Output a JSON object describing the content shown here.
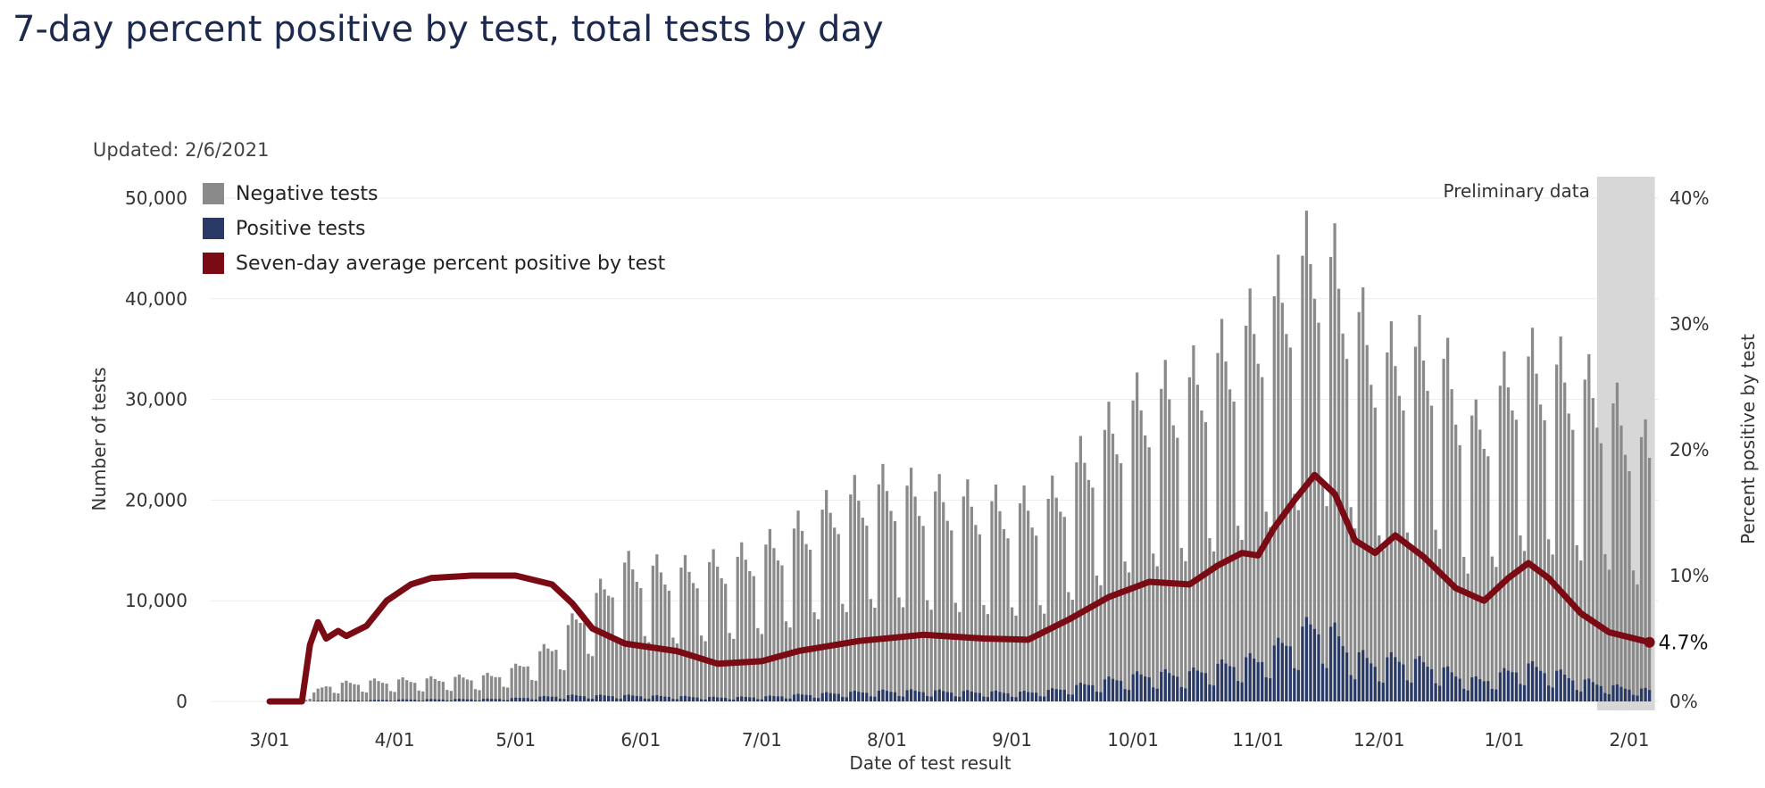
{
  "title": "7-day percent positive by test, total tests by day",
  "updated": "Updated: 2/6/2021",
  "colors": {
    "negative": "#8a8a8a",
    "positive": "#2a3a66",
    "line": "#7a0a14",
    "prelim_band": "#d7d7d7",
    "title": "#1d2a4d"
  },
  "chart_data": {
    "type": "bar",
    "xlabel": "Date of test result",
    "ylabel_left": "Number of tests",
    "ylabel_right": "Percent positive by test",
    "y_left_ticks": [
      "0",
      "10,000",
      "20,000",
      "30,000",
      "40,000",
      "50,000"
    ],
    "y_right_ticks": [
      "0%",
      "10%",
      "20%",
      "30%",
      "40%"
    ],
    "x_ticks": [
      "3/01",
      "4/01",
      "5/01",
      "6/01",
      "7/01",
      "8/01",
      "9/01",
      "10/01",
      "11/01",
      "12/01",
      "1/01",
      "2/01"
    ],
    "ylim_left": [
      0,
      50000
    ],
    "ylim_right": [
      0,
      40
    ],
    "legend": [
      "Negative tests",
      "Positive tests",
      "Seven-day average percent positive by test"
    ],
    "legend_position": "top-left",
    "preliminary_label": "Preliminary data",
    "preliminary_range": [
      "2021-01-24",
      "2021-02-06"
    ],
    "end_label": "4.7%",
    "series_total_tests_anchors": [
      [
        "2020-03-01",
        0
      ],
      [
        "2020-03-10",
        300
      ],
      [
        "2020-03-15",
        1500
      ],
      [
        "2020-03-25",
        1800
      ],
      [
        "2020-04-10",
        2000
      ],
      [
        "2020-04-25",
        2300
      ],
      [
        "2020-05-01",
        3000
      ],
      [
        "2020-05-10",
        5000
      ],
      [
        "2020-05-20",
        9000
      ],
      [
        "2020-05-28",
        12000
      ],
      [
        "2020-06-10",
        11500
      ],
      [
        "2020-06-25",
        12500
      ],
      [
        "2020-07-05",
        14000
      ],
      [
        "2020-07-20",
        17500
      ],
      [
        "2020-08-01",
        19000
      ],
      [
        "2020-08-15",
        18000
      ],
      [
        "2020-09-01",
        17000
      ],
      [
        "2020-09-10",
        17500
      ],
      [
        "2020-09-20",
        22000
      ],
      [
        "2020-10-01",
        26000
      ],
      [
        "2020-10-15",
        28000
      ],
      [
        "2020-10-25",
        31000
      ],
      [
        "2020-11-05",
        35000
      ],
      [
        "2020-11-15",
        40000
      ],
      [
        "2020-11-20",
        38000
      ],
      [
        "2020-12-01",
        30000
      ],
      [
        "2020-12-15",
        31000
      ],
      [
        "2020-12-25",
        24000
      ],
      [
        "2021-01-05",
        30000
      ],
      [
        "2021-01-15",
        29000
      ],
      [
        "2021-01-25",
        27000
      ],
      [
        "2021-02-06",
        22000
      ]
    ],
    "series_percent_positive": [
      [
        "2020-03-01",
        0
      ],
      [
        "2020-03-09",
        0
      ],
      [
        "2020-03-11",
        4.5
      ],
      [
        "2020-03-13",
        6.3
      ],
      [
        "2020-03-15",
        5.0
      ],
      [
        "2020-03-18",
        5.6
      ],
      [
        "2020-03-20",
        5.2
      ],
      [
        "2020-03-25",
        6.0
      ],
      [
        "2020-03-30",
        8.0
      ],
      [
        "2020-04-05",
        9.3
      ],
      [
        "2020-04-10",
        9.8
      ],
      [
        "2020-04-20",
        10.0
      ],
      [
        "2020-05-01",
        10.0
      ],
      [
        "2020-05-10",
        9.3
      ],
      [
        "2020-05-15",
        7.8
      ],
      [
        "2020-05-20",
        5.8
      ],
      [
        "2020-05-28",
        4.6
      ],
      [
        "2020-06-10",
        4.0
      ],
      [
        "2020-06-20",
        3.0
      ],
      [
        "2020-07-01",
        3.2
      ],
      [
        "2020-07-10",
        4.0
      ],
      [
        "2020-07-25",
        4.8
      ],
      [
        "2020-08-10",
        5.3
      ],
      [
        "2020-08-25",
        5.0
      ],
      [
        "2020-09-05",
        4.9
      ],
      [
        "2020-09-15",
        6.5
      ],
      [
        "2020-09-25",
        8.3
      ],
      [
        "2020-10-05",
        9.5
      ],
      [
        "2020-10-15",
        9.3
      ],
      [
        "2020-10-22",
        10.8
      ],
      [
        "2020-10-28",
        11.8
      ],
      [
        "2020-11-01",
        11.6
      ],
      [
        "2020-11-05",
        13.8
      ],
      [
        "2020-11-10",
        16.0
      ],
      [
        "2020-11-15",
        18.0
      ],
      [
        "2020-11-20",
        16.5
      ],
      [
        "2020-11-25",
        12.8
      ],
      [
        "2020-11-30",
        11.8
      ],
      [
        "2020-12-05",
        13.2
      ],
      [
        "2020-12-12",
        11.5
      ],
      [
        "2020-12-20",
        9.0
      ],
      [
        "2020-12-27",
        8.0
      ],
      [
        "2021-01-02",
        9.8
      ],
      [
        "2021-01-07",
        11.0
      ],
      [
        "2021-01-12",
        9.8
      ],
      [
        "2021-01-20",
        7.0
      ],
      [
        "2021-01-27",
        5.5
      ],
      [
        "2021-02-06",
        4.7
      ]
    ]
  }
}
